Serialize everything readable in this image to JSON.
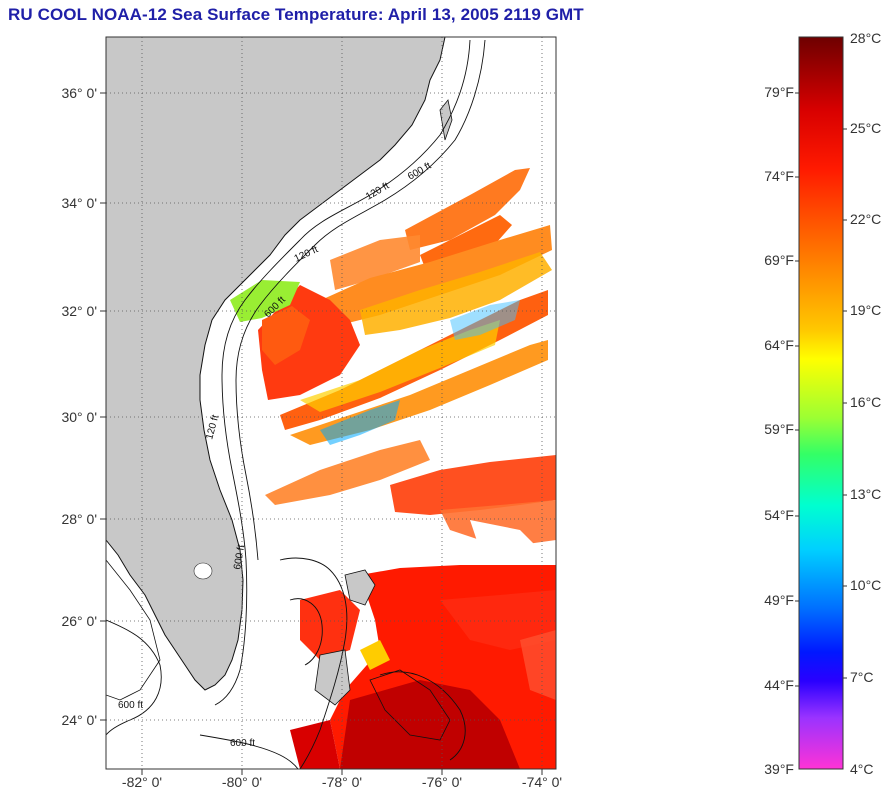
{
  "title": "RU COOL  NOAA-12  Sea Surface Temperature:  April 13, 2005 2119 GMT",
  "map": {
    "lat_labels": [
      "36° 0'",
      "34° 0'",
      "32° 0'",
      "30° 0'",
      "28° 0'",
      "26° 0'",
      "24° 0'"
    ],
    "lon_labels": [
      "-82° 0'",
      "-80° 0'",
      "-78° 0'",
      "-76° 0'",
      "-74° 0'"
    ],
    "isobath_labels": [
      "120 ft",
      "600 ft",
      "120 ft",
      "600 ft",
      "120 ft",
      "600 ft",
      "600 ft",
      "600 ft"
    ],
    "land_color": "#c8c8c8",
    "ocean_color": "#ffffff"
  },
  "colorbar": {
    "fahrenheit_labels": [
      "79°F",
      "74°F",
      "69°F",
      "64°F",
      "59°F",
      "54°F",
      "49°F",
      "44°F",
      "39°F"
    ],
    "celsius_labels": [
      "28°C",
      "25°C",
      "22°C",
      "19°C",
      "16°C",
      "13°C",
      "10°C",
      "7°C",
      "4°C"
    ],
    "colors": [
      "#7a0000",
      "#ff1a00",
      "#ff8c00",
      "#ffff00",
      "#33ff66",
      "#00e6ff",
      "#0040ff",
      "#4400ff",
      "#ff33cc"
    ]
  }
}
